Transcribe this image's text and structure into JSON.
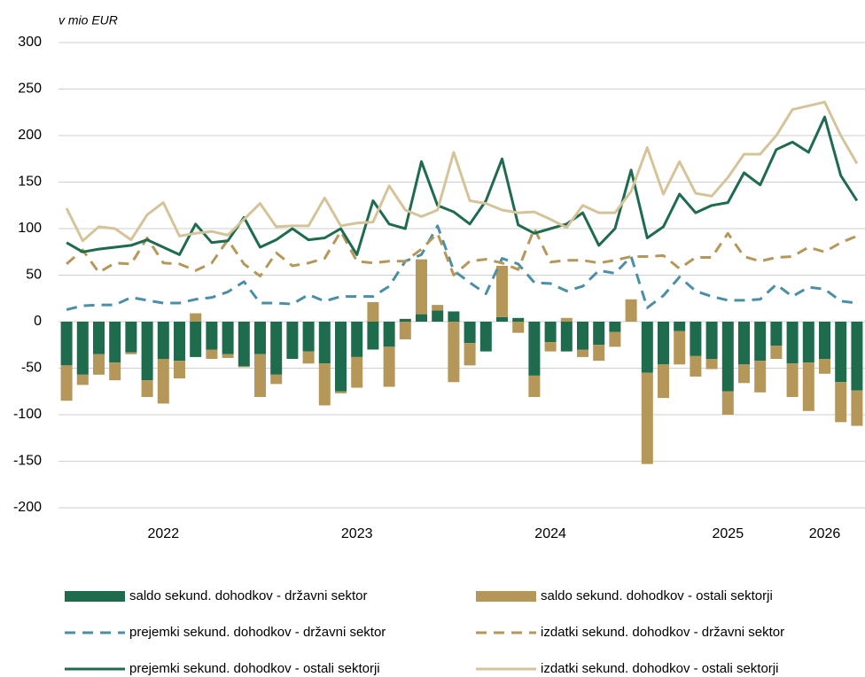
{
  "chart_data": {
    "type": "combo",
    "axis_label": "v mio EUR",
    "categories": [
      null,
      null,
      null,
      null,
      null,
      null,
      "2022",
      null,
      null,
      null,
      null,
      null,
      null,
      null,
      null,
      null,
      null,
      null,
      "2023",
      null,
      null,
      null,
      null,
      null,
      null,
      null,
      null,
      null,
      null,
      null,
      "2024",
      null,
      null,
      null,
      null,
      null,
      null,
      null,
      null,
      null,
      null,
      "2025",
      null,
      null,
      null,
      null,
      null,
      "2026",
      null,
      null
    ],
    "ylim": [
      -200,
      300
    ],
    "yticks": [
      -200,
      -150,
      -100,
      -50,
      0,
      50,
      100,
      150,
      200,
      250,
      300
    ],
    "grid": true,
    "series": [
      {
        "name": "saldo sekund. dohodkov - državni sektor",
        "color": "#1e6b4e",
        "style": "bar",
        "values": [
          -47,
          -57,
          -35,
          -44,
          -33,
          -63,
          -40,
          -42,
          -38,
          -30,
          -35,
          -48,
          -35,
          -57,
          -40,
          -32,
          -45,
          -75,
          -38,
          -30,
          -27,
          3,
          8,
          12,
          11,
          -23,
          -32,
          5,
          4,
          -58,
          -22,
          -32,
          -30,
          -25,
          -11,
          0,
          -55,
          -46,
          -10,
          -37,
          -40,
          -75,
          -46,
          -42,
          -26,
          -45,
          -44,
          -40,
          -65,
          -74
        ]
      },
      {
        "name": "saldo sekund. dohodkov - ostali sektorji",
        "color": "#b5975a",
        "style": "bar",
        "values": [
          -38,
          -11,
          -22,
          -19,
          -2,
          -18,
          -48,
          -19,
          9,
          -10,
          -4,
          -1,
          -46,
          -10,
          0,
          -13,
          -45,
          -2,
          -33,
          21,
          -43,
          -19,
          59,
          6,
          -65,
          -24,
          0,
          55,
          -12,
          -23,
          -10,
          4,
          -8,
          -17,
          -16,
          24,
          -98,
          -36,
          -36,
          -22,
          -11,
          -25,
          -20,
          -34,
          -14,
          -36,
          -52,
          -16,
          -43,
          -38
        ]
      },
      {
        "name": "prejemki sekund. dohodkov - državni sektor",
        "color": "#4a8fa6",
        "style": "dashed",
        "values": [
          13,
          17,
          18,
          18,
          26,
          23,
          20,
          20,
          24,
          26,
          32,
          43,
          20,
          20,
          19,
          29,
          22,
          27,
          27,
          27,
          38,
          65,
          72,
          103,
          55,
          42,
          30,
          68,
          62,
          42,
          41,
          33,
          38,
          55,
          52,
          70,
          15,
          28,
          48,
          33,
          27,
          23,
          23,
          24,
          40,
          27,
          37,
          35,
          22,
          20
        ]
      },
      {
        "name": "izdatki sekund. dohodkov - državni sektor",
        "color": "#b5975a",
        "style": "dashed",
        "values": [
          62,
          77,
          53,
          63,
          62,
          90,
          63,
          62,
          55,
          63,
          88,
          62,
          49,
          74,
          60,
          63,
          68,
          97,
          65,
          63,
          65,
          65,
          78,
          95,
          50,
          65,
          67,
          63,
          56,
          100,
          64,
          66,
          66,
          63,
          66,
          70,
          70,
          71,
          57,
          69,
          69,
          95,
          70,
          65,
          69,
          70,
          80,
          75,
          85,
          92
        ]
      },
      {
        "name": "prejemki sekund. dohodkov - ostali sektorji",
        "color": "#1e6b4e",
        "style": "solid",
        "values": [
          85,
          75,
          78,
          80,
          82,
          88,
          80,
          72,
          105,
          85,
          87,
          112,
          80,
          88,
          100,
          88,
          90,
          100,
          72,
          130,
          105,
          100,
          172,
          125,
          118,
          105,
          130,
          175,
          104,
          95,
          100,
          105,
          117,
          82,
          100,
          163,
          90,
          102,
          137,
          117,
          125,
          128,
          160,
          147,
          185,
          193,
          182,
          220,
          157,
          130
        ]
      },
      {
        "name": "izdatki sekund. dohodkov - ostali sektorji",
        "color": "#d5c49a",
        "style": "solid",
        "values": [
          122,
          87,
          102,
          100,
          88,
          115,
          128,
          92,
          95,
          97,
          93,
          110,
          127,
          102,
          103,
          103,
          133,
          103,
          106,
          107,
          146,
          120,
          113,
          120,
          182,
          130,
          127,
          120,
          117,
          118,
          110,
          101,
          125,
          117,
          117,
          140,
          187,
          137,
          172,
          138,
          135,
          155,
          180,
          180,
          200,
          228,
          232,
          236,
          200,
          170
        ]
      }
    ]
  }
}
